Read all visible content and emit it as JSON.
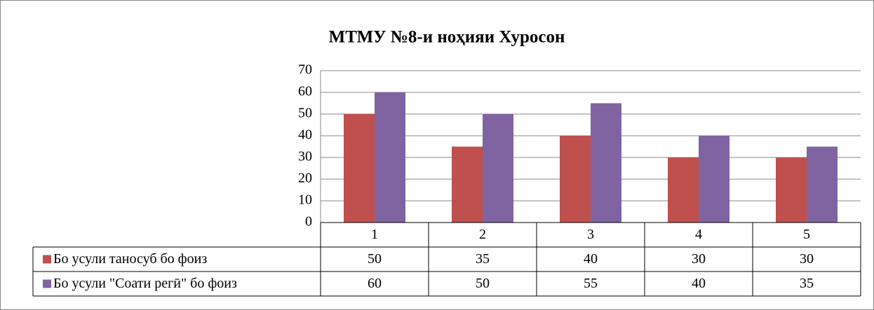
{
  "chart_data": {
    "type": "bar",
    "title": "МТМУ №8-и ноҳияи Хуросон",
    "categories": [
      "1",
      "2",
      "3",
      "4",
      "5"
    ],
    "series": [
      {
        "name": "Бо усули таносуб бо фоиз",
        "color": "#c0504d",
        "values": [
          50,
          35,
          40,
          30,
          30
        ]
      },
      {
        "name": "Бо усули \"Соати регӣ\" бо фоиз",
        "color": "#8064a2",
        "values": [
          60,
          50,
          55,
          40,
          35
        ]
      }
    ],
    "ylim": [
      0,
      70
    ],
    "yticks": [
      0,
      10,
      20,
      30,
      40,
      50,
      60,
      70
    ],
    "grid": true
  }
}
